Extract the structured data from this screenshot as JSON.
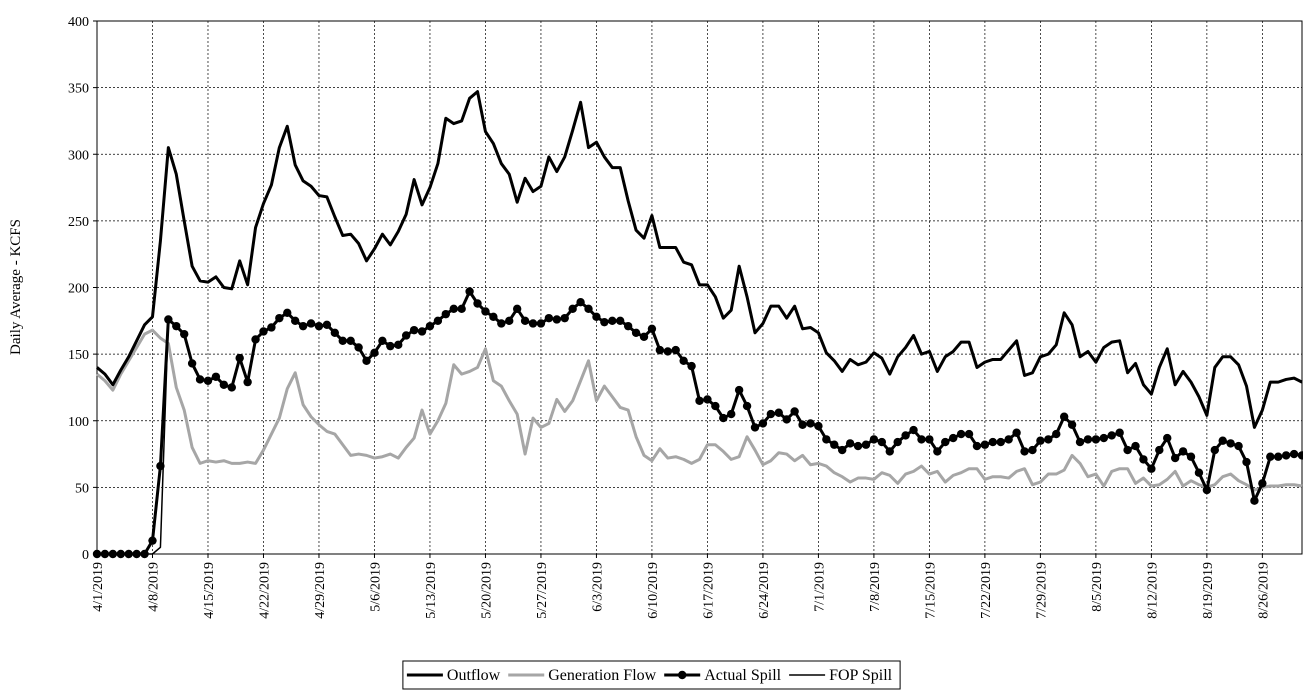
{
  "chart_data": {
    "type": "line",
    "y_label": "Daily Average - KCFS",
    "categories": [
      "4/1/2019",
      null,
      null,
      null,
      null,
      null,
      null,
      "4/8/2019",
      null,
      null,
      null,
      null,
      null,
      null,
      "4/15/2019",
      null,
      null,
      null,
      null,
      null,
      null,
      "4/22/2019",
      null,
      null,
      null,
      null,
      null,
      null,
      "4/29/2019",
      null,
      null,
      null,
      null,
      null,
      null,
      "5/6/2019",
      null,
      null,
      null,
      null,
      null,
      null,
      "5/13/2019",
      null,
      null,
      null,
      null,
      null,
      null,
      "5/20/2019",
      null,
      null,
      null,
      null,
      null,
      null,
      "5/27/2019",
      null,
      null,
      null,
      null,
      null,
      null,
      "6/3/2019",
      null,
      null,
      null,
      null,
      null,
      null,
      "6/10/2019",
      null,
      null,
      null,
      null,
      null,
      null,
      "6/17/2019",
      null,
      null,
      null,
      null,
      null,
      null,
      "6/24/2019",
      null,
      null,
      null,
      null,
      null,
      null,
      "7/1/2019",
      null,
      null,
      null,
      null,
      null,
      null,
      "7/8/2019",
      null,
      null,
      null,
      null,
      null,
      null,
      "7/15/2019",
      null,
      null,
      null,
      null,
      null,
      null,
      "7/22/2019",
      null,
      null,
      null,
      null,
      null,
      null,
      "7/29/2019",
      null,
      null,
      null,
      null,
      null,
      null,
      "8/5/2019",
      null,
      null,
      null,
      null,
      null,
      null,
      "8/12/2019",
      null,
      null,
      null,
      null,
      null,
      null,
      "8/19/2019",
      null,
      null,
      null,
      null,
      null,
      null,
      "8/26/2019",
      null,
      null,
      null,
      null,
      null
    ],
    "series": [
      {
        "name": "Outflow",
        "color": "#000000",
        "markers": false,
        "values": [
          140,
          135,
          127,
          138,
          148,
          160,
          172,
          178,
          235,
          305,
          285,
          250,
          216,
          205,
          204,
          208,
          200,
          199,
          220,
          202,
          245,
          263,
          277,
          305,
          321,
          292,
          280,
          276,
          269,
          268,
          253,
          239,
          240,
          233,
          220,
          229,
          240,
          232,
          242,
          255,
          281,
          262,
          275,
          293,
          327,
          323,
          325,
          342,
          347,
          317,
          308,
          293,
          285,
          264,
          282,
          272,
          276,
          298,
          287,
          298,
          318,
          339,
          305,
          309,
          298,
          290,
          290,
          265,
          243,
          237,
          254,
          230,
          230,
          230,
          219,
          217,
          202,
          202,
          193,
          177,
          183,
          216,
          193,
          166,
          173,
          186,
          186,
          177,
          186,
          169,
          170,
          166,
          151,
          145,
          137,
          146,
          142,
          144,
          151,
          147,
          135,
          148,
          155,
          164,
          150,
          152,
          137,
          148,
          152,
          159,
          159,
          140,
          144,
          146,
          146,
          153,
          160,
          134,
          136,
          148,
          150,
          157,
          181,
          172,
          148,
          152,
          144,
          155,
          159,
          160,
          136,
          143,
          127,
          120,
          140,
          154,
          127,
          137,
          129,
          118,
          104,
          140,
          148,
          148,
          142,
          126,
          95,
          108,
          129,
          129,
          131,
          132,
          129
        ]
      },
      {
        "name": "Generation Flow",
        "color": "#a6a6a6",
        "markers": false,
        "values": [
          135,
          130,
          123,
          135,
          145,
          155,
          165,
          168,
          162,
          158,
          125,
          108,
          80,
          68,
          70,
          69,
          70,
          68,
          68,
          69,
          68,
          78,
          90,
          102,
          124,
          136,
          112,
          103,
          97,
          92,
          90,
          82,
          74,
          75,
          74,
          72,
          73,
          75,
          72,
          80,
          87,
          108,
          90,
          100,
          113,
          142,
          135,
          137,
          140,
          154,
          130,
          126,
          115,
          105,
          75,
          102,
          95,
          98,
          116,
          107,
          115,
          130,
          145,
          115,
          126,
          118,
          110,
          108,
          88,
          74,
          70,
          79,
          72,
          73,
          71,
          68,
          71,
          82,
          82,
          77,
          71,
          73,
          88,
          78,
          67,
          70,
          76,
          75,
          70,
          74,
          67,
          68,
          66,
          61,
          58,
          54,
          57,
          57,
          56,
          61,
          59,
          53,
          60,
          62,
          66,
          60,
          62,
          54,
          59,
          61,
          64,
          64,
          56,
          58,
          58,
          57,
          62,
          64,
          52,
          54,
          60,
          60,
          63,
          74,
          68,
          58,
          60,
          51,
          62,
          64,
          64,
          53,
          57,
          51,
          52,
          56,
          62,
          51,
          55,
          52,
          50,
          52,
          58,
          60,
          55,
          52,
          48,
          50,
          51,
          51,
          52,
          52,
          51
        ]
      },
      {
        "name": "Actual Spill",
        "color": "#000000",
        "markers": true,
        "values": [
          0,
          0,
          0,
          0,
          0,
          0,
          0,
          10,
          66,
          176,
          171,
          165,
          143,
          131,
          130,
          133,
          127,
          125,
          147,
          129,
          161,
          167,
          170,
          177,
          181,
          175,
          171,
          173,
          171,
          172,
          166,
          160,
          160,
          155,
          145,
          151,
          160,
          156,
          157,
          164,
          168,
          167,
          171,
          175,
          180,
          184,
          184,
          197,
          188,
          182,
          178,
          173,
          175,
          184,
          175,
          173,
          173,
          177,
          176,
          177,
          184,
          189,
          184,
          178,
          174,
          175,
          175,
          171,
          166,
          163,
          169,
          153,
          152,
          153,
          145,
          141,
          115,
          116,
          111,
          102,
          105,
          123,
          111,
          95,
          98,
          105,
          106,
          101,
          107,
          97,
          98,
          96,
          86,
          82,
          78,
          83,
          81,
          82,
          86,
          84,
          77,
          84,
          89,
          93,
          86,
          86,
          77,
          84,
          87,
          90,
          90,
          81,
          82,
          84,
          84,
          86,
          91,
          77,
          78,
          85,
          86,
          90,
          103,
          97,
          84,
          86,
          86,
          87,
          89,
          91,
          78,
          81,
          71,
          64,
          78,
          87,
          72,
          77,
          73,
          61,
          48,
          78,
          85,
          83,
          81,
          69,
          40,
          53,
          73,
          73,
          74,
          75,
          74
        ]
      },
      {
        "name": "FOP Spill",
        "color": "#000000",
        "markers": false,
        "values": [
          0,
          0,
          0,
          0,
          0,
          0,
          0,
          0,
          5,
          176,
          171,
          165,
          143,
          131,
          130,
          133,
          127,
          125,
          147,
          129,
          161,
          167,
          170,
          177,
          181,
          175,
          171,
          173,
          171,
          172,
          166,
          160,
          160,
          155,
          145,
          151,
          160,
          156,
          157,
          164,
          168,
          167,
          171,
          175,
          180,
          184,
          184,
          197,
          188,
          182,
          178,
          173,
          175,
          184,
          175,
          173,
          173,
          177,
          176,
          177,
          184,
          189,
          184,
          178,
          174,
          175,
          175,
          171,
          166,
          163,
          169,
          153,
          152,
          153,
          145,
          141,
          115,
          116,
          111,
          102,
          105,
          123,
          111,
          95,
          98,
          105,
          106,
          101,
          107,
          97,
          98,
          96,
          86,
          82,
          78,
          83,
          81,
          82,
          86,
          84,
          77,
          84,
          89,
          93,
          86,
          86,
          77,
          84,
          87,
          90,
          90,
          81,
          82,
          84,
          84,
          86,
          91,
          77,
          78,
          85,
          86,
          90,
          103,
          97,
          84,
          86,
          86,
          87,
          89,
          91,
          78,
          81,
          71,
          64,
          78,
          87,
          72,
          77,
          73,
          61,
          48,
          78,
          85,
          83,
          81,
          69,
          40,
          53,
          73,
          73,
          74,
          75,
          74
        ]
      }
    ],
    "ylim": [
      0,
      400
    ],
    "yticks": [
      0,
      50,
      100,
      150,
      200,
      250,
      300,
      350,
      400
    ],
    "grid": true,
    "legend": "bottom"
  }
}
